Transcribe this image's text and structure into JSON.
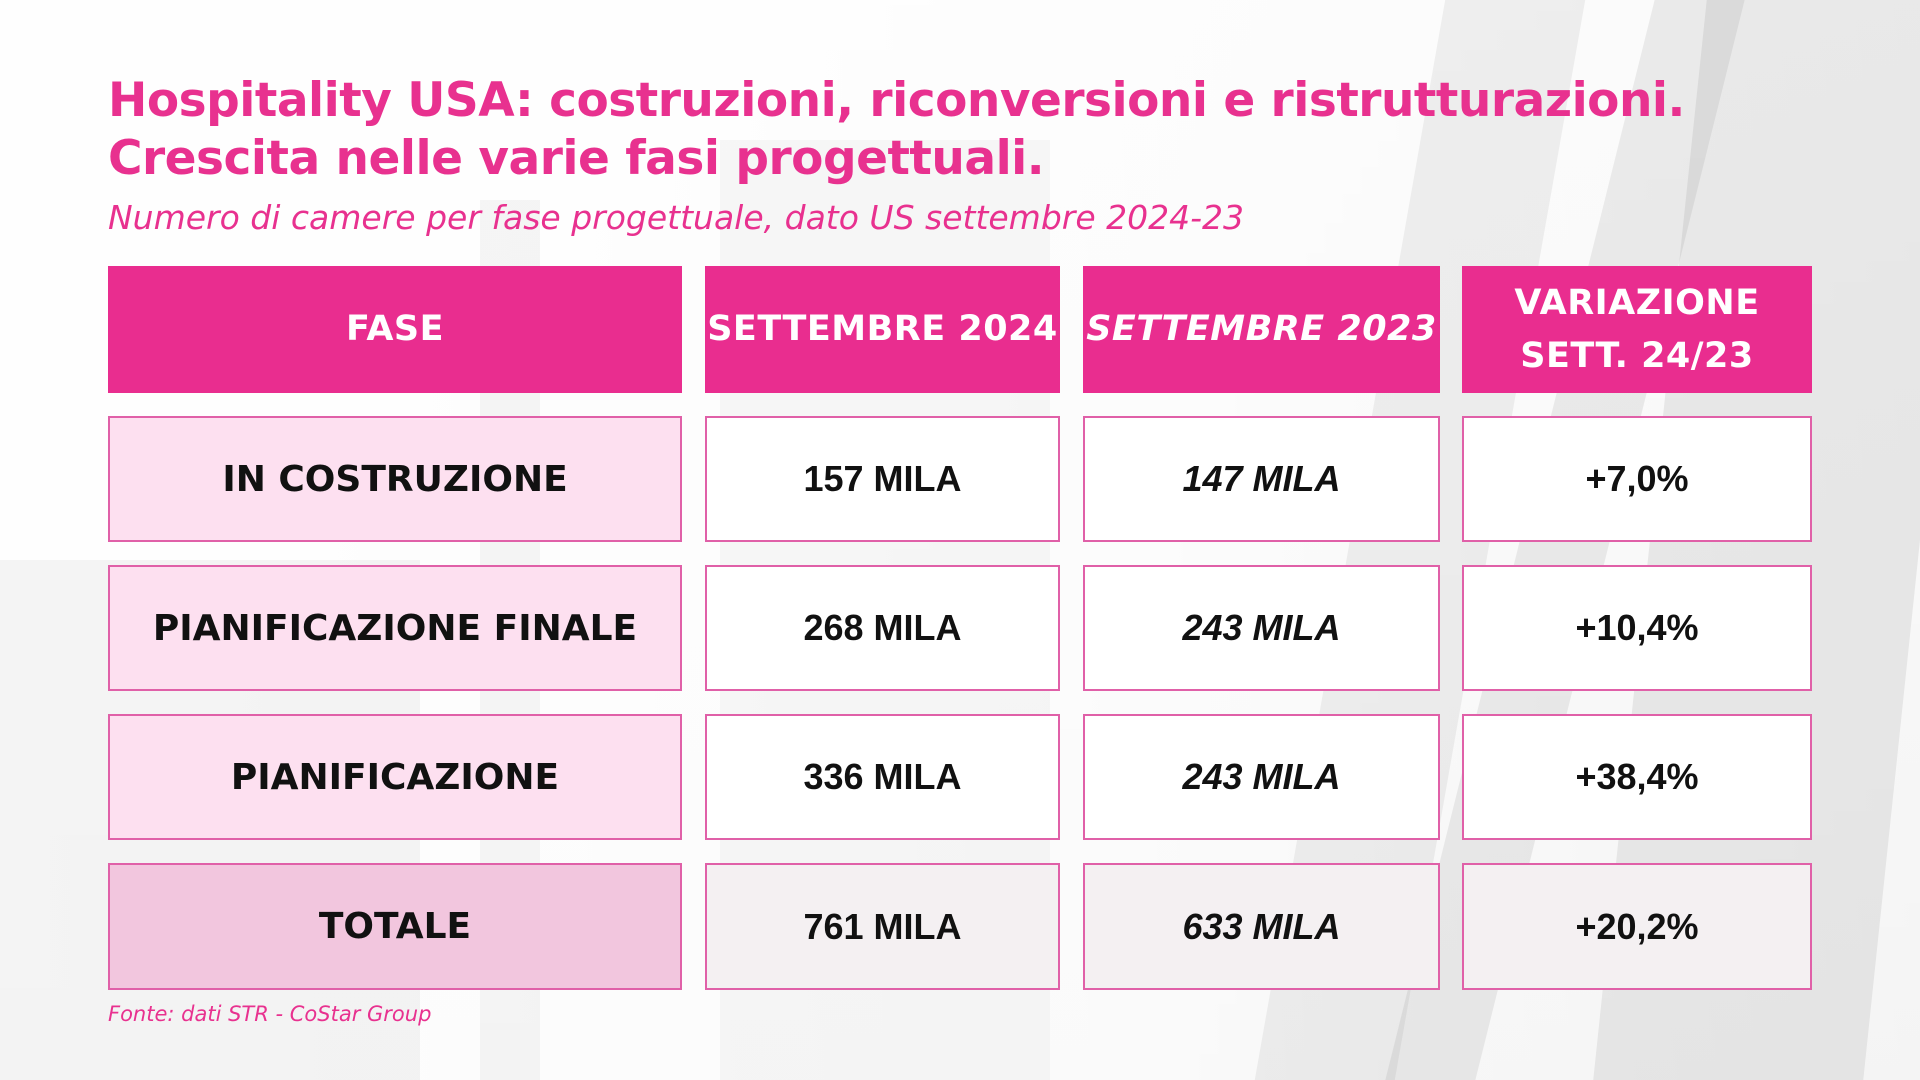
{
  "title_line1": "Hospitality USA: costruzioni, riconversioni e ristrutturazioni.",
  "title_line2": "Crescita nelle varie fasi progettuali.",
  "subtitle": "Numero di camere per fase progettuale, dato US settembre 2024-23",
  "source": "Fonte: dati STR - CoStar Group",
  "colors": {
    "accent": "#e92d8f",
    "label_bg": "#fde0f0",
    "total_bg": "#f2c6de"
  },
  "chart_data": {
    "type": "table",
    "columns": [
      "FASE",
      "SETTEMBRE 2024",
      "SETTEMBRE 2023",
      "VARIAZIONE SETT. 24/23"
    ],
    "header_variazione_line1": "VARIAZIONE",
    "header_variazione_line2": "SETT. 24/23",
    "rows": [
      {
        "fase": "IN COSTRUZIONE",
        "sett_2024": "157 MILA",
        "sett_2023": "147 MILA",
        "variazione": "+7,0%"
      },
      {
        "fase": "PIANIFICAZIONE FINALE",
        "sett_2024": "268 MILA",
        "sett_2023": "243 MILA",
        "variazione": "+10,4%"
      },
      {
        "fase": "PIANIFICAZIONE",
        "sett_2024": "336 MILA",
        "sett_2023": "243 MILA",
        "variazione": "+38,4%"
      },
      {
        "fase": "TOTALE",
        "sett_2024": "761 MILA",
        "sett_2023": "633 MILA",
        "variazione": "+20,2%"
      }
    ]
  }
}
